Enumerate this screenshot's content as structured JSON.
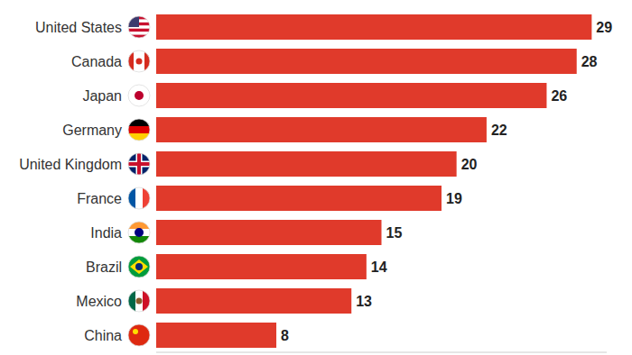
{
  "chart_data": {
    "type": "bar",
    "orientation": "horizontal",
    "categories": [
      "United States",
      "Canada",
      "Japan",
      "Germany",
      "United Kingdom",
      "France",
      "India",
      "Brazil",
      "Mexico",
      "China"
    ],
    "values": [
      29,
      28,
      26,
      22,
      20,
      19,
      15,
      14,
      13,
      8
    ],
    "color": "#e03a2b",
    "xlim": [
      0,
      30
    ],
    "xticks": [],
    "data_labels": true,
    "tick_labels": "y",
    "grid": false
  }
}
